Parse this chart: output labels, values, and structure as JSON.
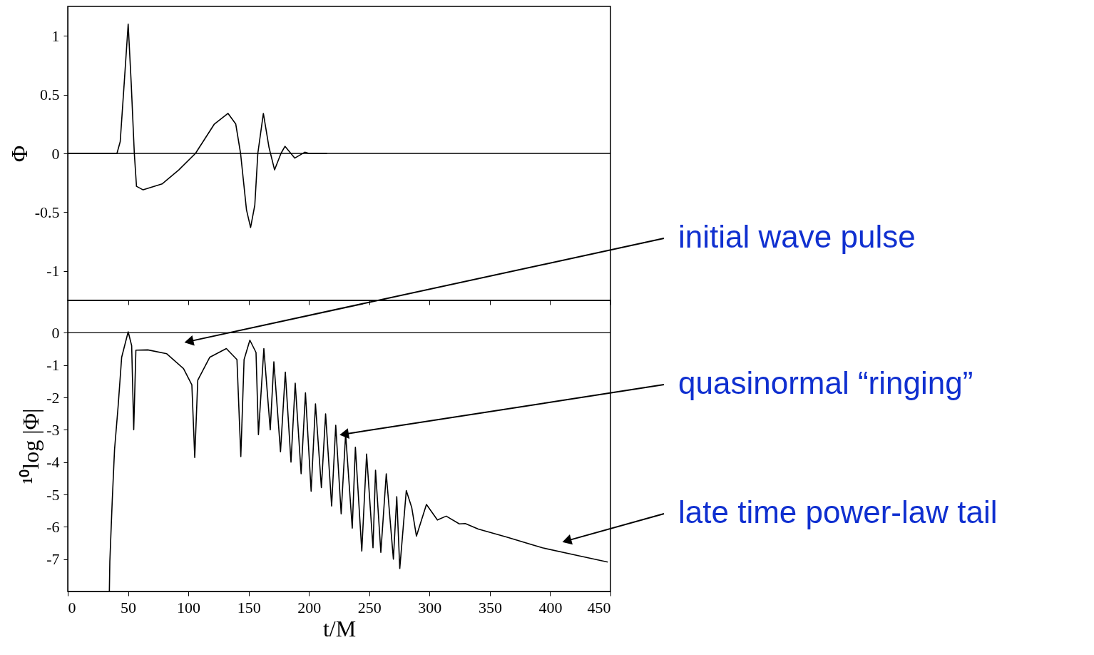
{
  "chart_data": [
    {
      "type": "line",
      "ylabel": "Φ",
      "xlim": [
        0,
        450
      ],
      "xticks": [
        0,
        50,
        100,
        150,
        200,
        250,
        300,
        350,
        400,
        450
      ],
      "ylim": [
        -1.25,
        1.25
      ],
      "yticks": [
        -1,
        -0.5,
        0,
        0.5,
        1
      ],
      "tick_labels": "y",
      "grid": false,
      "marker": "none",
      "line_style": "solid",
      "ref_lines": [
        {
          "axis": "y",
          "value": 0
        }
      ],
      "series": [
        {
          "color": "#000000",
          "x": [
            0,
            40.8,
            43.5,
            46.7,
            50.1,
            52.6,
            55.2,
            57,
            62.5,
            78.2,
            92.1,
            105.9,
            121.6,
            132.9,
            139.3,
            143.3,
            148.2,
            151.6,
            155.1,
            157.6,
            162.2,
            166.9,
            171.5,
            176.8,
            180.1,
            188.2,
            196.5,
            200,
            215
          ],
          "values": [
            0,
            0,
            0.1,
            0.58,
            1.1,
            0.6,
            0,
            -0.28,
            -0.31,
            -0.26,
            -0.14,
            0,
            0.25,
            0.34,
            0.25,
            0,
            -0.48,
            -0.63,
            -0.44,
            0,
            0.34,
            0.05,
            -0.14,
            0,
            0.06,
            -0.04,
            0.01,
            0,
            0
          ]
        }
      ]
    },
    {
      "type": "line",
      "xlabel": "t/M",
      "ylabel": "¹⁰log |Φ|",
      "xlim": [
        0,
        450
      ],
      "xticks": [
        0,
        50,
        100,
        150,
        200,
        250,
        300,
        350,
        400,
        450
      ],
      "ylim": [
        -8,
        1
      ],
      "yticks": [
        -7,
        -6,
        -5,
        -4,
        -3,
        -2,
        -1,
        0
      ],
      "grid": false,
      "marker": "none",
      "line_style": "solid",
      "ref_lines": [
        {
          "axis": "y",
          "value": 0
        }
      ],
      "series": [
        {
          "color": "#000000",
          "x": [
            34.5,
            34.9,
            36.9,
            38.8,
            41.8,
            44.7,
            50.1,
            53.0,
            54.7,
            56.5,
            66.4,
            82.1,
            96,
            102.9,
            105.3,
            107.8,
            117.7,
            131.5,
            140.3,
            143.5,
            146.2,
            151.0,
            156.1,
            158.1,
            162.6,
            167.9,
            170.9,
            176.4,
            180.4,
            185.1,
            188.6,
            193.5,
            197.1,
            201.8,
            205.4,
            210.3,
            213.8,
            218.8,
            222.2,
            226.7,
            230.4,
            235.9,
            238.5,
            243.8,
            247.8,
            253.1,
            255.2,
            259.6,
            264.1,
            270,
            272.8,
            275.3,
            280.7,
            285.2,
            289.1,
            297.4,
            306.5,
            313.8,
            324.7,
            329.6,
            340.4,
            364,
            393.6,
            423.2,
            447.8
          ],
          "values": [
            -8,
            -7.07,
            -5.18,
            -3.61,
            -2.26,
            -0.76,
            0.03,
            -0.4,
            -3.0,
            -0.54,
            -0.53,
            -0.65,
            -1.11,
            -1.61,
            -3.86,
            -1.47,
            -0.76,
            -0.49,
            -0.83,
            -3.83,
            -0.83,
            -0.23,
            -0.61,
            -3.15,
            -0.49,
            -3.0,
            -0.9,
            -3.68,
            -1.22,
            -4.0,
            -1.56,
            -4.36,
            -1.86,
            -4.9,
            -2.2,
            -4.79,
            -2.51,
            -5.36,
            -2.86,
            -5.6,
            -3.13,
            -6.04,
            -3.54,
            -6.75,
            -3.75,
            -6.65,
            -4.25,
            -6.79,
            -4.36,
            -7.0,
            -5.07,
            -7.29,
            -4.88,
            -5.4,
            -6.29,
            -5.31,
            -5.79,
            -5.67,
            -5.91,
            -5.9,
            -6.07,
            -6.32,
            -6.65,
            -6.89,
            -7.09
          ]
        }
      ],
      "annotations": [
        {
          "text": "initial wave pulse",
          "x": 101.7,
          "y": -0.26
        },
        {
          "text": "quasinormal “ringing”",
          "x": 230.4,
          "y": -3.13
        },
        {
          "text": "late time power-law tail",
          "x": 415,
          "y": -6.42
        }
      ]
    }
  ]
}
